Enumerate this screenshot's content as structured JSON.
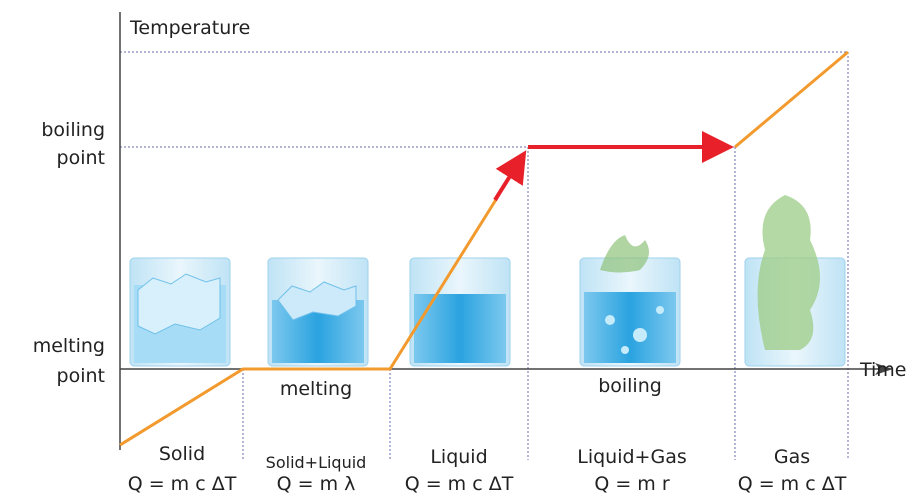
{
  "axes": {
    "y_label": "Temperature",
    "x_label": "Time"
  },
  "levels": {
    "boiling_point": [
      "boiling",
      "point"
    ],
    "melting_point": [
      "melting",
      "point"
    ]
  },
  "processes": [
    "melting",
    "boiling"
  ],
  "phases": [
    {
      "name": "Solid",
      "formula": "Q = m c ΔT"
    },
    {
      "name": "Solid+Liquid",
      "formula": "Q = m λ"
    },
    {
      "name": "Liquid",
      "formula": "Q = m c ΔT"
    },
    {
      "name": "Liquid+Gas",
      "formula": "Q = m r"
    },
    {
      "name": "Gas",
      "formula": "Q = m c ΔT"
    }
  ]
}
